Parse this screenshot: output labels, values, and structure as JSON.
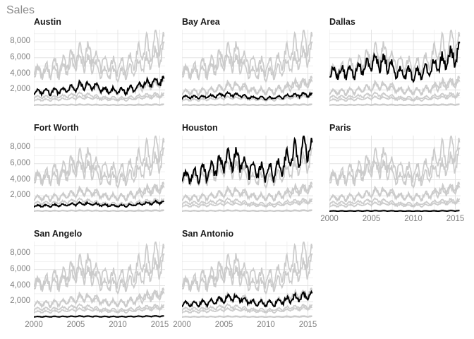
{
  "chart_data": {
    "type": "line",
    "title": "Sales",
    "description": "Faceted monthly housing sales time series; each facet highlights one city in black over all cities in gray",
    "x": {
      "ticks": [
        2000,
        2005,
        2010,
        2015
      ],
      "tick_labels": [
        "2000",
        "2005",
        "2010",
        "2015"
      ],
      "range": [
        2000,
        2015.5
      ],
      "minor_ticks": [
        2002.5,
        2007.5,
        2012.5
      ]
    },
    "y": {
      "ticks": [
        2000,
        4000,
        6000,
        8000
      ],
      "tick_labels": [
        "2,000",
        "4,000",
        "6,000",
        "8,000"
      ],
      "range": [
        0,
        9500
      ],
      "minor_step": 1000
    },
    "grid": true,
    "legend": "none",
    "facets": [
      {
        "title": "Austin",
        "col": 0,
        "row": 0,
        "x_axis": false,
        "y_axis": true,
        "highlight": "Austin"
      },
      {
        "title": "Bay Area",
        "col": 1,
        "row": 0,
        "x_axis": false,
        "y_axis": false,
        "highlight": "Bay Area"
      },
      {
        "title": "Dallas",
        "col": 2,
        "row": 0,
        "x_axis": false,
        "y_axis": false,
        "highlight": "Dallas"
      },
      {
        "title": "Fort Worth",
        "col": 0,
        "row": 1,
        "x_axis": false,
        "y_axis": true,
        "highlight": "Fort Worth"
      },
      {
        "title": "Houston",
        "col": 1,
        "row": 1,
        "x_axis": false,
        "y_axis": false,
        "highlight": "Houston"
      },
      {
        "title": "Paris",
        "col": 2,
        "row": 1,
        "x_axis": true,
        "y_axis": false,
        "highlight": "Paris"
      },
      {
        "title": "San Angelo",
        "col": 0,
        "row": 2,
        "x_axis": true,
        "y_axis": true,
        "highlight": "San Angelo"
      },
      {
        "title": "San Antonio",
        "col": 1,
        "row": 2,
        "x_axis": true,
        "y_axis": false,
        "highlight": "San Antonio"
      }
    ],
    "series": [
      {
        "name": "Houston",
        "yearly_level": [
          4300,
          4500,
          4700,
          5000,
          5600,
          6300,
          6700,
          6500,
          5400,
          5100,
          4900,
          5000,
          5900,
          6900,
          7400,
          8000
        ],
        "seasonal_amplitude": 0.18
      },
      {
        "name": "Dallas",
        "yearly_level": [
          4000,
          4100,
          4200,
          4400,
          4800,
          5300,
          5500,
          5200,
          4400,
          4100,
          3900,
          4000,
          4600,
          5300,
          5700,
          6300
        ],
        "seasonal_amplitude": 0.17
      },
      {
        "name": "Austin",
        "yearly_level": [
          1700,
          1750,
          1750,
          1850,
          2050,
          2350,
          2550,
          2500,
          2100,
          1900,
          1850,
          1900,
          2250,
          2650,
          2850,
          3100
        ],
        "seasonal_amplitude": 0.18
      },
      {
        "name": "San Antonio",
        "yearly_level": [
          1650,
          1700,
          1750,
          1900,
          2050,
          2350,
          2500,
          2400,
          2000,
          1850,
          1800,
          1800,
          2050,
          2350,
          2500,
          2750
        ],
        "seasonal_amplitude": 0.16
      },
      {
        "name": "Bay Area",
        "yearly_level": [
          1050,
          1100,
          1100,
          1150,
          1250,
          1400,
          1400,
          1300,
          1050,
          1000,
          950,
          1000,
          1150,
          1300,
          1350,
          1400
        ],
        "seasonal_amplitude": 0.14
      },
      {
        "name": "Fort Worth",
        "yearly_level": [
          720,
          760,
          780,
          820,
          880,
          980,
          1030,
          980,
          840,
          790,
          760,
          790,
          900,
          1040,
          1100,
          1200
        ],
        "seasonal_amplitude": 0.15
      },
      {
        "name": "San Angelo",
        "yearly_level": [
          140,
          145,
          150,
          155,
          165,
          185,
          190,
          185,
          160,
          150,
          145,
          150,
          170,
          190,
          200,
          210
        ],
        "seasonal_amplitude": 0.25
      },
      {
        "name": "Paris",
        "yearly_level": [
          100,
          105,
          105,
          110,
          115,
          125,
          125,
          120,
          105,
          95,
          95,
          95,
          105,
          115,
          120,
          130
        ],
        "seasonal_amplitude": 0.25
      }
    ],
    "seasonal_profile": [
      -1.0,
      -0.75,
      -0.1,
      0.3,
      0.65,
      1.0,
      0.85,
      0.7,
      0.2,
      0.0,
      -0.55,
      -0.95
    ],
    "noise_level": 0.05,
    "points_per_year": 12,
    "colors": {
      "background": "#ffffff",
      "title_text": "#8c8c8c",
      "facet_title_text": "#1a1a1a",
      "axis_text": "#808080",
      "grid_major": "#e4e4e4",
      "grid_minor": "#f1f1f1",
      "context_line": "#cbcbcb",
      "highlight_line": "#000000"
    }
  }
}
